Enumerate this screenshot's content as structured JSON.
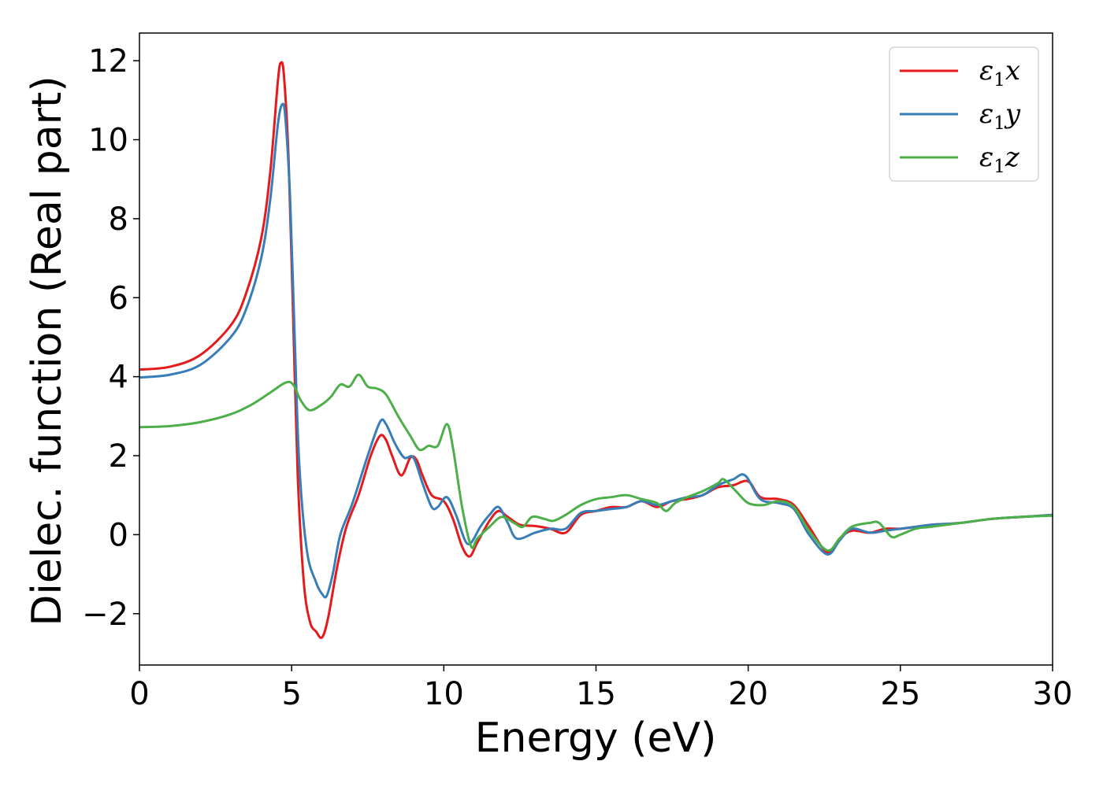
{
  "chart_data": {
    "type": "line",
    "title": "",
    "xlabel": "Energy (eV)",
    "ylabel": "Dielec. function (Real part)",
    "xlim": [
      0,
      30
    ],
    "ylim": [
      -3.3,
      12.7
    ],
    "xticks": [
      0,
      5,
      10,
      15,
      20,
      25,
      30
    ],
    "xtick_labels": [
      "0",
      "5",
      "10",
      "15",
      "20",
      "25",
      "30"
    ],
    "yticks": [
      -2,
      0,
      2,
      4,
      6,
      8,
      10,
      12
    ],
    "ytick_labels": [
      "−2",
      "0",
      "2",
      "4",
      "6",
      "8",
      "10",
      "12"
    ],
    "grid": false,
    "legend_position": "top-right",
    "series": [
      {
        "name": "ε₁x",
        "legend_base": "ε",
        "legend_sub": "1",
        "legend_var": "x",
        "color": "#e41a1c",
        "points": [
          [
            0,
            4.18
          ],
          [
            1,
            4.25
          ],
          [
            2,
            4.55
          ],
          [
            3,
            5.3
          ],
          [
            3.5,
            6.1
          ],
          [
            4,
            7.5
          ],
          [
            4.3,
            9.2
          ],
          [
            4.55,
            11.5
          ],
          [
            4.65,
            11.95
          ],
          [
            4.75,
            11.6
          ],
          [
            4.9,
            9.5
          ],
          [
            5.05,
            5.5
          ],
          [
            5.2,
            1.5
          ],
          [
            5.4,
            -1.2
          ],
          [
            5.6,
            -2.2
          ],
          [
            5.8,
            -2.45
          ],
          [
            6.0,
            -2.6
          ],
          [
            6.2,
            -2.1
          ],
          [
            6.5,
            -0.8
          ],
          [
            6.8,
            0.2
          ],
          [
            7.2,
            1.0
          ],
          [
            7.6,
            2.0
          ],
          [
            7.9,
            2.5
          ],
          [
            8.1,
            2.4
          ],
          [
            8.3,
            2.0
          ],
          [
            8.6,
            1.5
          ],
          [
            8.9,
            1.95
          ],
          [
            9.1,
            1.9
          ],
          [
            9.3,
            1.5
          ],
          [
            9.6,
            1.0
          ],
          [
            10.0,
            0.85
          ],
          [
            10.3,
            0.4
          ],
          [
            10.6,
            -0.3
          ],
          [
            10.85,
            -0.55
          ],
          [
            11.1,
            -0.2
          ],
          [
            11.5,
            0.35
          ],
          [
            11.8,
            0.6
          ],
          [
            12.1,
            0.45
          ],
          [
            12.5,
            0.25
          ],
          [
            13,
            0.22
          ],
          [
            13.5,
            0.15
          ],
          [
            14,
            0.05
          ],
          [
            14.5,
            0.5
          ],
          [
            15,
            0.6
          ],
          [
            15.5,
            0.7
          ],
          [
            16,
            0.7
          ],
          [
            16.5,
            0.85
          ],
          [
            17,
            0.7
          ],
          [
            17.5,
            0.85
          ],
          [
            18,
            0.9
          ],
          [
            18.5,
            1.0
          ],
          [
            19,
            1.2
          ],
          [
            19.5,
            1.25
          ],
          [
            20,
            1.35
          ],
          [
            20.4,
            0.95
          ],
          [
            21,
            0.9
          ],
          [
            21.5,
            0.75
          ],
          [
            22,
            0.2
          ],
          [
            22.6,
            -0.45
          ],
          [
            23,
            -0.1
          ],
          [
            23.4,
            0.1
          ],
          [
            24,
            0.05
          ],
          [
            24.5,
            0.15
          ],
          [
            25,
            0.15
          ],
          [
            25.5,
            0.2
          ],
          [
            26,
            0.25
          ],
          [
            27,
            0.3
          ],
          [
            28,
            0.4
          ],
          [
            29,
            0.45
          ],
          [
            30,
            0.5
          ]
        ]
      },
      {
        "name": "ε₁y",
        "legend_base": "ε",
        "legend_sub": "1",
        "legend_var": "y",
        "color": "#377eb8",
        "points": [
          [
            0,
            3.98
          ],
          [
            1,
            4.05
          ],
          [
            2,
            4.3
          ],
          [
            3,
            5.0
          ],
          [
            3.5,
            5.7
          ],
          [
            4,
            7.0
          ],
          [
            4.3,
            8.5
          ],
          [
            4.55,
            10.4
          ],
          [
            4.7,
            10.9
          ],
          [
            4.8,
            10.5
          ],
          [
            4.95,
            8.5
          ],
          [
            5.1,
            5.0
          ],
          [
            5.25,
            1.8
          ],
          [
            5.5,
            -0.4
          ],
          [
            5.8,
            -1.2
          ],
          [
            6.0,
            -1.5
          ],
          [
            6.15,
            -1.55
          ],
          [
            6.35,
            -1.0
          ],
          [
            6.6,
            0.0
          ],
          [
            7.0,
            0.8
          ],
          [
            7.5,
            2.0
          ],
          [
            7.9,
            2.85
          ],
          [
            8.1,
            2.8
          ],
          [
            8.4,
            2.3
          ],
          [
            8.7,
            1.95
          ],
          [
            9.0,
            1.95
          ],
          [
            9.3,
            1.3
          ],
          [
            9.6,
            0.7
          ],
          [
            9.8,
            0.7
          ],
          [
            10.1,
            0.95
          ],
          [
            10.4,
            0.5
          ],
          [
            10.7,
            -0.15
          ],
          [
            10.9,
            -0.2
          ],
          [
            11.2,
            0.2
          ],
          [
            11.5,
            0.5
          ],
          [
            11.8,
            0.7
          ],
          [
            12.1,
            0.3
          ],
          [
            12.4,
            -0.1
          ],
          [
            13,
            0.05
          ],
          [
            13.5,
            0.15
          ],
          [
            14,
            0.15
          ],
          [
            14.5,
            0.55
          ],
          [
            15,
            0.6
          ],
          [
            15.5,
            0.65
          ],
          [
            16,
            0.7
          ],
          [
            16.5,
            0.85
          ],
          [
            17,
            0.75
          ],
          [
            17.5,
            0.85
          ],
          [
            18,
            0.95
          ],
          [
            18.5,
            1.0
          ],
          [
            19,
            1.25
          ],
          [
            19.5,
            1.4
          ],
          [
            19.9,
            1.5
          ],
          [
            20.4,
            0.9
          ],
          [
            21,
            0.8
          ],
          [
            21.5,
            0.65
          ],
          [
            22,
            0.0
          ],
          [
            22.6,
            -0.5
          ],
          [
            23,
            -0.15
          ],
          [
            23.4,
            0.15
          ],
          [
            24,
            0.05
          ],
          [
            24.5,
            0.1
          ],
          [
            25,
            0.15
          ],
          [
            25.5,
            0.2
          ],
          [
            26,
            0.25
          ],
          [
            27,
            0.3
          ],
          [
            28,
            0.4
          ],
          [
            29,
            0.45
          ],
          [
            30,
            0.5
          ]
        ]
      },
      {
        "name": "ε₁z",
        "legend_base": "ε",
        "legend_sub": "1",
        "legend_var": "z",
        "color": "#4daf4a",
        "points": [
          [
            0,
            2.72
          ],
          [
            1,
            2.75
          ],
          [
            2,
            2.85
          ],
          [
            3,
            3.05
          ],
          [
            3.7,
            3.3
          ],
          [
            4.3,
            3.6
          ],
          [
            4.8,
            3.85
          ],
          [
            5.05,
            3.8
          ],
          [
            5.3,
            3.4
          ],
          [
            5.6,
            3.15
          ],
          [
            6.0,
            3.3
          ],
          [
            6.3,
            3.5
          ],
          [
            6.6,
            3.8
          ],
          [
            6.9,
            3.75
          ],
          [
            7.2,
            4.05
          ],
          [
            7.5,
            3.75
          ],
          [
            7.8,
            3.7
          ],
          [
            8.1,
            3.55
          ],
          [
            8.5,
            3.0
          ],
          [
            8.9,
            2.5
          ],
          [
            9.2,
            2.15
          ],
          [
            9.5,
            2.25
          ],
          [
            9.8,
            2.25
          ],
          [
            10.1,
            2.8
          ],
          [
            10.3,
            2.2
          ],
          [
            10.6,
            0.7
          ],
          [
            10.9,
            -0.3
          ],
          [
            11.1,
            -0.1
          ],
          [
            11.5,
            0.2
          ],
          [
            11.9,
            0.45
          ],
          [
            12.3,
            0.3
          ],
          [
            12.6,
            0.2
          ],
          [
            12.9,
            0.45
          ],
          [
            13.3,
            0.4
          ],
          [
            13.6,
            0.35
          ],
          [
            14,
            0.5
          ],
          [
            14.5,
            0.75
          ],
          [
            15,
            0.9
          ],
          [
            15.5,
            0.95
          ],
          [
            16,
            1.0
          ],
          [
            16.5,
            0.9
          ],
          [
            17,
            0.8
          ],
          [
            17.3,
            0.6
          ],
          [
            17.6,
            0.8
          ],
          [
            18,
            0.95
          ],
          [
            18.5,
            1.1
          ],
          [
            19,
            1.3
          ],
          [
            19.2,
            1.4
          ],
          [
            19.6,
            1.1
          ],
          [
            20,
            0.8
          ],
          [
            20.5,
            0.75
          ],
          [
            21,
            0.85
          ],
          [
            21.5,
            0.7
          ],
          [
            22,
            0.1
          ],
          [
            22.6,
            -0.4
          ],
          [
            23,
            -0.1
          ],
          [
            23.4,
            0.2
          ],
          [
            24,
            0.3
          ],
          [
            24.3,
            0.3
          ],
          [
            24.7,
            -0.05
          ],
          [
            25,
            0.0
          ],
          [
            25.5,
            0.15
          ],
          [
            26,
            0.2
          ],
          [
            27,
            0.3
          ],
          [
            28,
            0.4
          ],
          [
            29,
            0.45
          ],
          [
            30,
            0.48
          ]
        ]
      }
    ]
  }
}
